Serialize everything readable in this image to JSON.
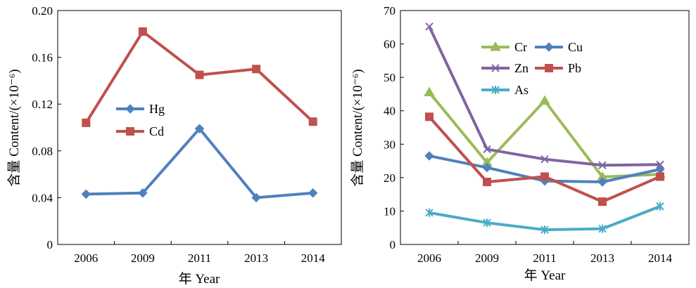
{
  "chart_data": [
    {
      "type": "line",
      "categories": [
        "2006",
        "2009",
        "2011",
        "2013",
        "2014"
      ],
      "xlabel": "年 Year",
      "ylabel": "含量 Content/(×10⁻⁶)",
      "ylim": [
        0,
        0.2
      ],
      "yticks": [
        "0",
        "0.04",
        "0.08",
        "0.12",
        "0.16",
        "0.20"
      ],
      "grid": false,
      "legend_position": "middle-left",
      "series": [
        {
          "name": "Hg",
          "color": "#4f81bd",
          "marker": "diamond",
          "values": [
            0.043,
            0.044,
            0.099,
            0.04,
            0.044
          ]
        },
        {
          "name": "Cd",
          "color": "#c0504d",
          "marker": "square",
          "values": [
            0.104,
            0.182,
            0.145,
            0.15,
            0.105
          ]
        }
      ]
    },
    {
      "type": "line",
      "categories": [
        "2006",
        "2009",
        "2011",
        "2013",
        "2014"
      ],
      "xlabel": "年 Year",
      "ylabel": "含量 Content/(×10⁻⁶)",
      "ylim": [
        0,
        70
      ],
      "yticks": [
        "0",
        "10",
        "20",
        "30",
        "40",
        "50",
        "60",
        "70"
      ],
      "grid": false,
      "legend_position": "top-left",
      "series": [
        {
          "name": "Cr",
          "color": "#9bbb59",
          "marker": "triangle",
          "values": [
            45.5,
            24.5,
            43.0,
            20.2,
            21.0
          ]
        },
        {
          "name": "Cu",
          "color": "#4f81bd",
          "marker": "diamond",
          "values": [
            26.5,
            23.0,
            19.0,
            18.7,
            22.5
          ]
        },
        {
          "name": "Zn",
          "color": "#8064a2",
          "marker": "x",
          "values": [
            65.2,
            28.5,
            25.5,
            23.7,
            23.9
          ]
        },
        {
          "name": "Pb",
          "color": "#c0504d",
          "marker": "square",
          "values": [
            38.2,
            18.7,
            20.3,
            12.8,
            20.3
          ]
        },
        {
          "name": "As",
          "color": "#4bacc6",
          "marker": "star",
          "values": [
            9.5,
            6.5,
            4.4,
            4.7,
            11.4
          ]
        }
      ]
    }
  ]
}
